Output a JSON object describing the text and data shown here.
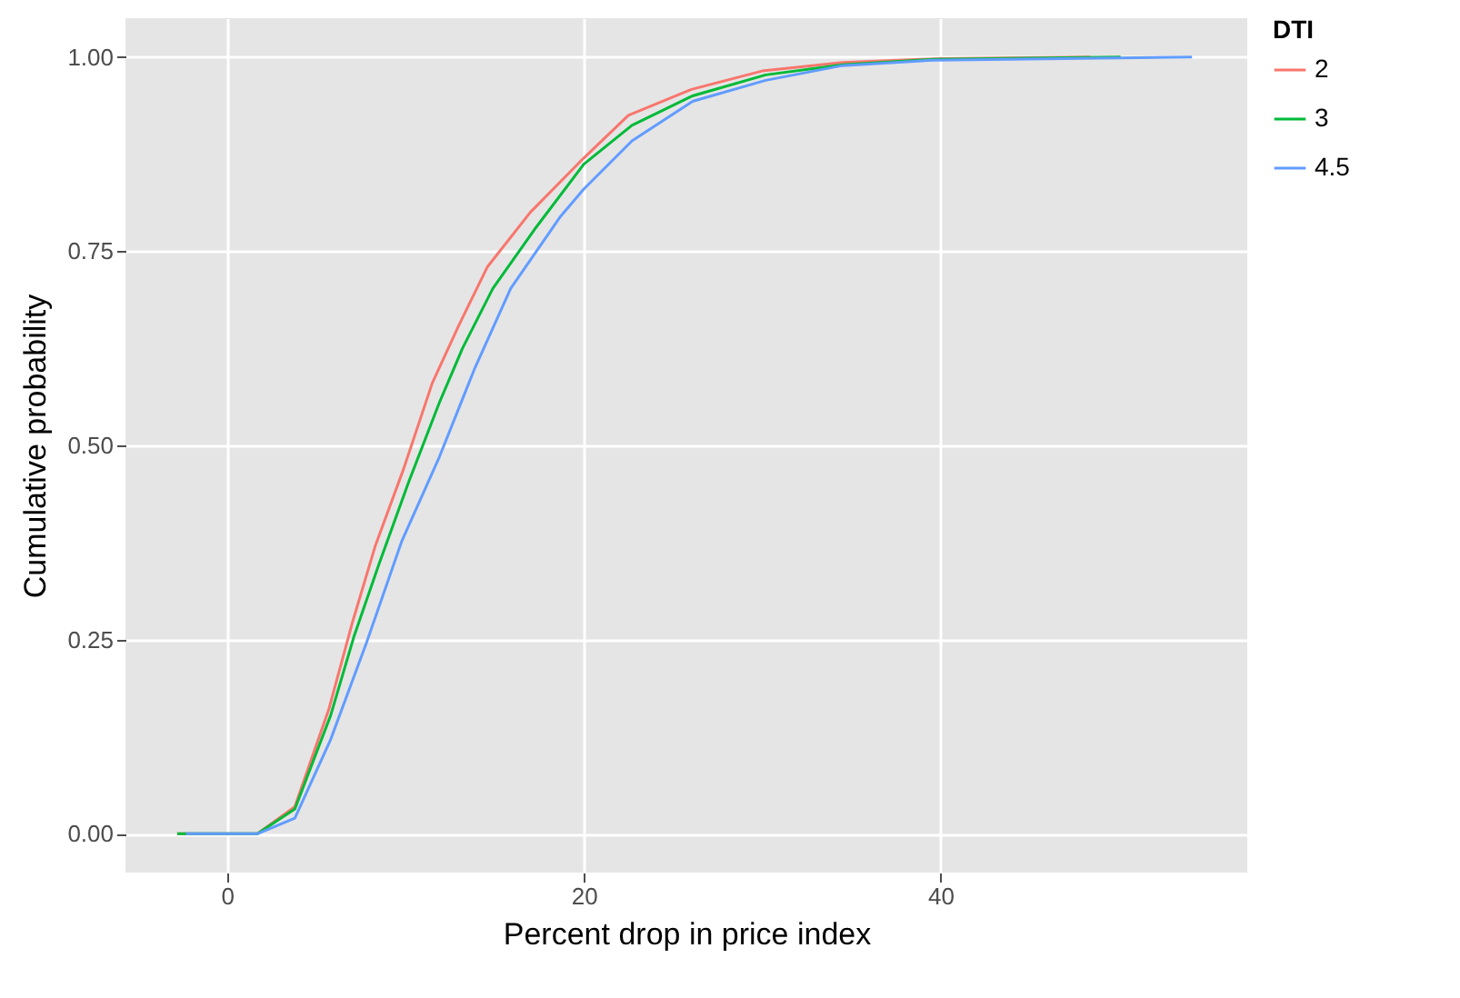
{
  "chart_data": {
    "type": "line",
    "xlabel": "Percent drop in price index",
    "ylabel": "Cumulative probability",
    "legend_title": "DTI",
    "xlim": [
      -5.7,
      57.2
    ],
    "xticks": [
      0,
      20,
      40
    ],
    "ylim": [
      -0.05,
      1.05
    ],
    "yticks": [
      {
        "value": 0,
        "label": "0.00"
      },
      {
        "value": 0.25,
        "label": "0.25"
      },
      {
        "value": 0.5,
        "label": "0.50"
      },
      {
        "value": 0.75,
        "label": "0.75"
      },
      {
        "value": 1,
        "label": "1.00"
      }
    ],
    "grid": true,
    "legend": "right",
    "series": [
      {
        "name": "2",
        "color": "#f8766d",
        "x": [
          -2.8,
          1.7,
          3.8,
          5.7,
          7.0,
          8.3,
          9.9,
          11.5,
          13.0,
          14.6,
          17.0,
          20.0,
          22.5,
          26.0,
          30.0,
          34.5,
          40.0,
          48.4
        ],
        "values": [
          0,
          0,
          0.035,
          0.16,
          0.27,
          0.37,
          0.47,
          0.58,
          0.655,
          0.73,
          0.8,
          0.87,
          0.925,
          0.958,
          0.982,
          0.993,
          0.998,
          1
        ]
      },
      {
        "name": "3",
        "color": "#00ba38",
        "x": [
          -2.8,
          1.7,
          3.8,
          5.8,
          7.1,
          8.5,
          10.2,
          11.9,
          13.2,
          14.9,
          17.3,
          20.0,
          22.7,
          26.1,
          30.2,
          34.5,
          39.6,
          50.1
        ],
        "values": [
          0,
          0,
          0.032,
          0.152,
          0.253,
          0.346,
          0.454,
          0.555,
          0.625,
          0.702,
          0.78,
          0.862,
          0.912,
          0.95,
          0.977,
          0.99,
          0.997,
          1
        ]
      },
      {
        "name": "4.5",
        "color": "#619cff",
        "x": [
          -2.3,
          1.7,
          3.8,
          5.8,
          7.8,
          9.8,
          11.9,
          13.9,
          15.9,
          18.7,
          20.0,
          22.7,
          26.1,
          30.2,
          34.5,
          39.6,
          54.1
        ],
        "values": [
          0,
          0,
          0.02,
          0.121,
          0.245,
          0.377,
          0.485,
          0.6,
          0.702,
          0.795,
          0.83,
          0.892,
          0.943,
          0.97,
          0.989,
          0.996,
          1
        ]
      }
    ]
  }
}
